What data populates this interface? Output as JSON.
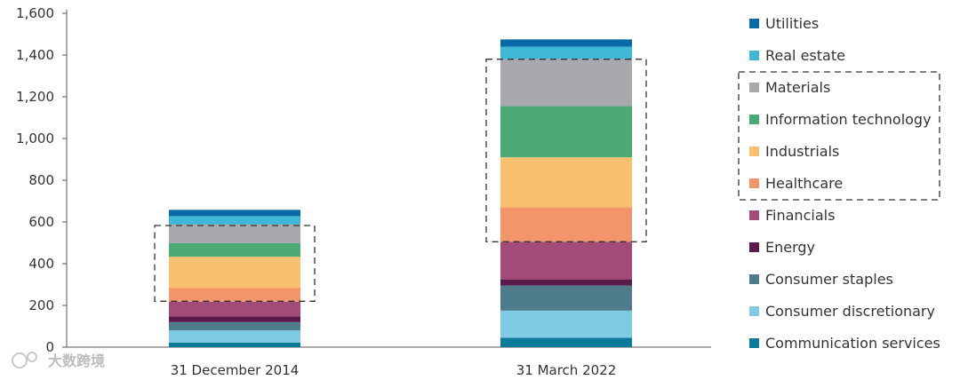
{
  "chart_data": {
    "type": "bar",
    "stacked": true,
    "categories": [
      "31 December 2014",
      "31 March 2022"
    ],
    "ylim": [
      0,
      1600
    ],
    "yticks": [
      0,
      200,
      400,
      600,
      800,
      1000,
      1200,
      1400,
      1600
    ],
    "ytick_labels": [
      "0",
      "200",
      "400",
      "600",
      "800",
      "1,000",
      "1,200",
      "1,400",
      "1,600"
    ],
    "grid": false,
    "legend_position": "right",
    "series": [
      {
        "name": "Communication services",
        "color": "#0a7a9a",
        "values": [
          22,
          45
        ]
      },
      {
        "name": "Consumer discretionary",
        "color": "#7fcbe3",
        "values": [
          58,
          130
        ]
      },
      {
        "name": "Consumer staples",
        "color": "#4f7c8a",
        "values": [
          40,
          120
        ]
      },
      {
        "name": "Energy",
        "color": "#5a1a4a",
        "values": [
          28,
          30
        ]
      },
      {
        "name": "Financials",
        "color": "#a34a78",
        "values": [
          70,
          180
        ]
      },
      {
        "name": "Healthcare",
        "color": "#f2956a",
        "values": [
          65,
          165
        ]
      },
      {
        "name": "Industrials",
        "color": "#f9c16f",
        "values": [
          150,
          240
        ]
      },
      {
        "name": "Information technology",
        "color": "#4caa74",
        "values": [
          65,
          245
        ]
      },
      {
        "name": "Materials",
        "color": "#a7a9ac",
        "values": [
          90,
          225
        ]
      },
      {
        "name": "Real estate",
        "color": "#3fb8d6",
        "values": [
          40,
          60
        ]
      },
      {
        "name": "Utilities",
        "color": "#0a6aa8",
        "values": [
          30,
          35
        ]
      }
    ],
    "highlight_groups": [
      {
        "category_index": 0,
        "from": 220,
        "to": 583
      },
      {
        "category_index": 1,
        "from": 505,
        "to": 1380
      }
    ],
    "legend_highlight": [
      "Materials",
      "Information technology",
      "Industrials",
      "Healthcare"
    ]
  },
  "watermark": "大数跨境"
}
